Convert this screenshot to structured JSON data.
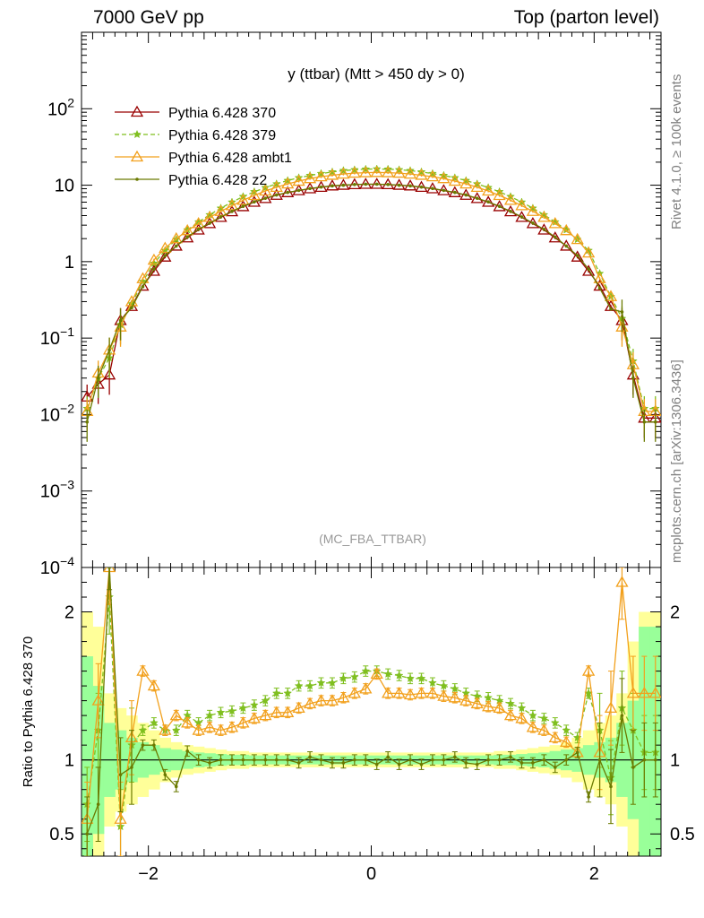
{
  "header": {
    "left": "7000 GeV pp",
    "right": "Top (parton level)"
  },
  "side_labels": {
    "rivet": "Rivet 4.1.0, ≥ 100k events",
    "mcplots": "mcplots.cern.ch [arXiv:1306.3436]"
  },
  "chart_data": {
    "type": "line",
    "title": "y (ttbar) (Mtt > 450 dy > 0)",
    "watermark": "(MC_FBA_TTBAR)",
    "xlim": [
      -2.6,
      2.6
    ],
    "xticks": [
      -2,
      0,
      2
    ],
    "xtick_labels": [
      "−2",
      "0",
      "2"
    ],
    "main": {
      "yscale": "log",
      "ylim": [
        0.0001,
        1000
      ],
      "ytick_labels": [
        {
          "v": 100,
          "base": "10",
          "exp": "2"
        },
        {
          "v": 10,
          "base": "10",
          "exp": ""
        },
        {
          "v": 1,
          "base": "1",
          "exp": ""
        },
        {
          "v": 0.1,
          "base": "10",
          "exp": "−1"
        },
        {
          "v": 0.01,
          "base": "10",
          "exp": "−2"
        },
        {
          "v": 0.001,
          "base": "10",
          "exp": "−3"
        },
        {
          "v": 0.0001,
          "base": "10",
          "exp": "−4"
        }
      ]
    },
    "ratio": {
      "ylabel": "Ratio to Pythia 6.428 370",
      "ylim": [
        0.35,
        2.3
      ],
      "tick_labels": [
        {
          "v": 2,
          "label": "2"
        },
        {
          "v": 1,
          "label": "1"
        },
        {
          "v": 0.5,
          "label": "0.5"
        }
      ]
    },
    "legend": {
      "position": "top-left",
      "entries": [
        {
          "name": "Pythia 6.428 370",
          "color": "#990000",
          "marker": "triangle-open",
          "dash": "solid"
        },
        {
          "name": "Pythia 6.428 379",
          "color": "#7fbf1f",
          "marker": "star",
          "dash": "dashed"
        },
        {
          "name": "Pythia 6.428 ambt1",
          "color": "#f2a01c",
          "marker": "triangle-open",
          "dash": "solid"
        },
        {
          "name": "Pythia 6.428 z2",
          "color": "#6b7a00",
          "marker": "dot",
          "dash": "solid"
        }
      ]
    },
    "x": [
      -2.55,
      -2.45,
      -2.35,
      -2.25,
      -2.15,
      -2.05,
      -1.95,
      -1.85,
      -1.75,
      -1.65,
      -1.55,
      -1.45,
      -1.35,
      -1.25,
      -1.15,
      -1.05,
      -0.95,
      -0.85,
      -0.75,
      -0.65,
      -0.55,
      -0.45,
      -0.35,
      -0.25,
      -0.15,
      -0.05,
      0.05,
      0.15,
      0.25,
      0.35,
      0.45,
      0.55,
      0.65,
      0.75,
      0.85,
      0.95,
      1.05,
      1.15,
      1.25,
      1.35,
      1.45,
      1.55,
      1.65,
      1.75,
      1.85,
      1.95,
      2.05,
      2.15,
      2.25,
      2.35,
      2.45,
      2.55
    ],
    "series": [
      {
        "name": "Pythia 6.428 370",
        "values": [
          0.017,
          0.025,
          0.033,
          0.17,
          0.26,
          0.48,
          0.75,
          1.15,
          1.6,
          2.05,
          2.6,
          3.15,
          3.8,
          4.5,
          5.25,
          6.0,
          6.7,
          7.4,
          8.0,
          8.5,
          9.0,
          9.4,
          9.8,
          10.0,
          10.2,
          10.3,
          10.3,
          10.2,
          10.0,
          9.8,
          9.4,
          9.0,
          8.5,
          8.0,
          7.4,
          6.7,
          6.0,
          5.25,
          4.5,
          3.8,
          3.15,
          2.6,
          2.05,
          1.6,
          1.15,
          0.75,
          0.48,
          0.26,
          0.17,
          0.033,
          0.009,
          0.009
        ]
      },
      {
        "name": "Pythia 6.428 379",
        "values": [
          0.012,
          0.03,
          0.055,
          0.15,
          0.28,
          0.55,
          0.95,
          1.4,
          1.95,
          2.6,
          3.3,
          4.1,
          5.0,
          6.0,
          7.1,
          8.2,
          9.3,
          10.4,
          11.5,
          12.5,
          13.4,
          14.2,
          14.9,
          15.5,
          15.9,
          16.2,
          16.3,
          16.2,
          15.9,
          15.5,
          14.9,
          14.2,
          13.4,
          12.5,
          11.5,
          10.4,
          9.3,
          8.2,
          7.1,
          6.0,
          5.0,
          4.1,
          3.3,
          2.6,
          1.95,
          1.4,
          0.7,
          0.35,
          0.18,
          0.05,
          0.012,
          0.012
        ]
      },
      {
        "name": "Pythia 6.428 ambt1",
        "values": [
          0.011,
          0.035,
          0.07,
          0.14,
          0.3,
          0.6,
          1.05,
          1.5,
          2.0,
          2.55,
          3.15,
          3.8,
          4.55,
          5.4,
          6.35,
          7.35,
          8.4,
          9.4,
          10.4,
          11.3,
          12.2,
          12.9,
          13.5,
          14.0,
          14.4,
          14.6,
          14.7,
          14.6,
          14.4,
          14.0,
          13.5,
          12.9,
          12.2,
          11.3,
          10.4,
          9.4,
          8.4,
          7.35,
          6.35,
          5.4,
          4.55,
          3.8,
          3.15,
          2.55,
          1.95,
          1.3,
          0.6,
          0.35,
          0.14,
          0.045,
          0.011,
          0.011
        ]
      },
      {
        "name": "Pythia 6.428 z2",
        "values": [
          0.008,
          0.03,
          0.07,
          0.17,
          0.25,
          0.47,
          0.8,
          1.2,
          1.6,
          2.1,
          2.65,
          3.2,
          3.85,
          4.55,
          5.3,
          6.05,
          6.75,
          7.45,
          8.05,
          8.55,
          9.05,
          9.45,
          9.8,
          10.0,
          10.2,
          10.3,
          10.3,
          10.2,
          10.0,
          9.8,
          9.45,
          9.05,
          8.55,
          8.05,
          7.45,
          6.75,
          6.05,
          5.3,
          4.55,
          3.85,
          3.2,
          2.65,
          2.1,
          1.6,
          1.2,
          0.8,
          0.45,
          0.24,
          0.22,
          0.03,
          0.008,
          0.008
        ]
      }
    ],
    "ratio_series": [
      {
        "name": "Pythia 6.428 379",
        "values": [
          0.7,
          1.2,
          2.1,
          0.55,
          1.1,
          1.2,
          1.25,
          1.2,
          1.2,
          1.3,
          1.25,
          1.3,
          1.32,
          1.33,
          1.35,
          1.37,
          1.4,
          1.45,
          1.45,
          1.5,
          1.5,
          1.52,
          1.52,
          1.55,
          1.56,
          1.6,
          1.6,
          1.58,
          1.57,
          1.55,
          1.55,
          1.52,
          1.5,
          1.48,
          1.45,
          1.43,
          1.42,
          1.4,
          1.38,
          1.35,
          1.3,
          1.28,
          1.25,
          1.2,
          1.15,
          1.45,
          1.2,
          0.88,
          1.35,
          1.2,
          1.05,
          1.05
        ]
      },
      {
        "name": "Pythia 6.428 ambt1",
        "values": [
          0.6,
          1.4,
          2.3,
          0.6,
          1.15,
          1.6,
          1.5,
          1.2,
          1.3,
          1.25,
          1.2,
          1.22,
          1.2,
          1.22,
          1.25,
          1.28,
          1.3,
          1.32,
          1.32,
          1.35,
          1.38,
          1.4,
          1.4,
          1.42,
          1.45,
          1.48,
          1.58,
          1.45,
          1.45,
          1.44,
          1.45,
          1.45,
          1.43,
          1.42,
          1.4,
          1.38,
          1.36,
          1.35,
          1.3,
          1.28,
          1.22,
          1.2,
          1.15,
          1.12,
          1.05,
          1.6,
          1.05,
          1.35,
          2.2,
          1.45,
          1.45,
          1.45
        ]
      },
      {
        "name": "Pythia 6.428 z2",
        "values": [
          0.5,
          0.7,
          2.4,
          0.9,
          0.95,
          1.1,
          1.1,
          0.9,
          0.82,
          1.06,
          1.0,
          0.98,
          1.0,
          1.0,
          1.0,
          1.0,
          1.0,
          1.0,
          1.0,
          0.98,
          1.02,
          1.0,
          0.98,
          0.98,
          1.0,
          1.0,
          0.97,
          1.02,
          0.97,
          1.0,
          0.97,
          1.0,
          1.0,
          1.02,
          0.98,
          0.97,
          1.0,
          1.0,
          1.02,
          0.98,
          0.98,
          1.0,
          0.95,
          1.0,
          1.05,
          0.75,
          1.0,
          0.82,
          1.3,
          0.95,
          1.0,
          1.0
        ]
      }
    ],
    "ratio_band_halfwidth": {
      "green": [
        0.7,
        0.5,
        0.25,
        0.2,
        0.15,
        0.12,
        0.1,
        0.08,
        0.07,
        0.06,
        0.05,
        0.045,
        0.04,
        0.035,
        0.035,
        0.03,
        0.03,
        0.03,
        0.03,
        0.03,
        0.03,
        0.03,
        0.03,
        0.03,
        0.03,
        0.03,
        0.03,
        0.03,
        0.03,
        0.03,
        0.03,
        0.03,
        0.03,
        0.03,
        0.03,
        0.03,
        0.03,
        0.035,
        0.035,
        0.04,
        0.045,
        0.05,
        0.06,
        0.07,
        0.08,
        0.1,
        0.12,
        0.15,
        0.25,
        0.4,
        0.9,
        0.9
      ],
      "yellow": [
        1.0,
        0.9,
        0.45,
        0.35,
        0.3,
        0.25,
        0.2,
        0.15,
        0.12,
        0.1,
        0.09,
        0.08,
        0.07,
        0.06,
        0.06,
        0.05,
        0.05,
        0.05,
        0.05,
        0.05,
        0.05,
        0.05,
        0.05,
        0.05,
        0.05,
        0.05,
        0.05,
        0.05,
        0.05,
        0.05,
        0.05,
        0.05,
        0.05,
        0.05,
        0.05,
        0.05,
        0.05,
        0.06,
        0.06,
        0.07,
        0.08,
        0.09,
        0.1,
        0.12,
        0.15,
        0.2,
        0.25,
        0.3,
        0.45,
        0.8,
        1.0,
        1.0
      ]
    }
  }
}
